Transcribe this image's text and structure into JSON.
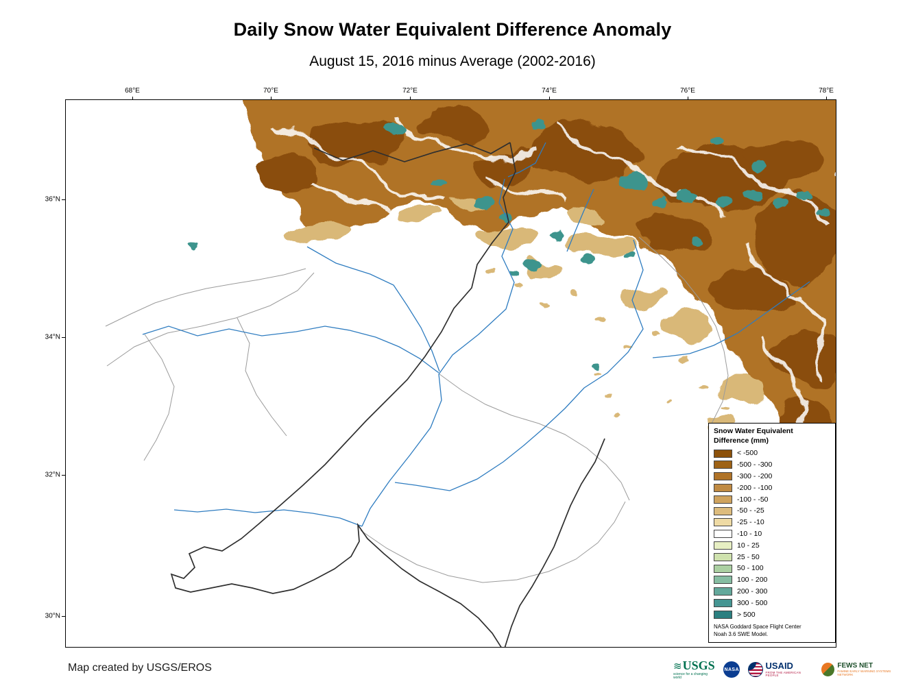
{
  "title": "Daily Snow Water Equivalent Difference Anomaly",
  "subtitle": "August 15, 2016 minus Average (2002-2016)",
  "axes": {
    "top_ticks": [
      "68°E",
      "70°E",
      "72°E",
      "74°E",
      "76°E",
      "78°E"
    ],
    "left_ticks": [
      "36°N",
      "34°N",
      "32°N",
      "30°N"
    ]
  },
  "legend": {
    "title_line1": "Snow Water Equivalent",
    "title_line2": "Difference (mm)",
    "items": [
      {
        "label": "< -500",
        "color": "#8c510a"
      },
      {
        "label": "-500 - -300",
        "color": "#9e6215"
      },
      {
        "label": "-300 - -200",
        "color": "#b07327"
      },
      {
        "label": "-200 - -100",
        "color": "#c08a42"
      },
      {
        "label": "-100 - -50",
        "color": "#cfa35e"
      },
      {
        "label": "-50 - -25",
        "color": "#ddbc7d"
      },
      {
        "label": "-25 - -10",
        "color": "#eedaa4"
      },
      {
        "label": "-10 - 10",
        "color": "#ffffff"
      },
      {
        "label": "10 - 25",
        "color": "#e7efc3"
      },
      {
        "label": "25 - 50",
        "color": "#cfe2ae"
      },
      {
        "label": "50 - 100",
        "color": "#abd0a2"
      },
      {
        "label": "100 - 200",
        "color": "#86bda2"
      },
      {
        "label": "200 - 300",
        "color": "#63a89b"
      },
      {
        "label": "300 - 500",
        "color": "#459592"
      },
      {
        "label": "> 500",
        "color": "#2b7f80"
      }
    ],
    "note_line1": "NASA Goddard Space Flight Center",
    "note_line2": "Noah 3.6 SWE Model."
  },
  "footer": {
    "credit": "Map created by USGS/EROS"
  },
  "logos": {
    "usgs": {
      "label": "USGS",
      "tagline": "science for a changing world"
    },
    "nasa": {
      "label": "NASA"
    },
    "usaid": {
      "label": "USAID",
      "tagline": "FROM THE AMERICAN PEOPLE"
    },
    "fews": {
      "label": "FEWS NET",
      "tagline": "FAMINE EARLY WARNING SYSTEMS NETWORK"
    }
  },
  "colors": {
    "terrain_core": "#8a4d0e",
    "terrain_mid": "#b07327",
    "terrain_fringe": "#d9b878",
    "positive_teal": "#3d948d",
    "river_blue": "#2e7cc0",
    "subbasin_gray": "#9b9b9b",
    "boundary_dark": "#2f2f2f"
  }
}
